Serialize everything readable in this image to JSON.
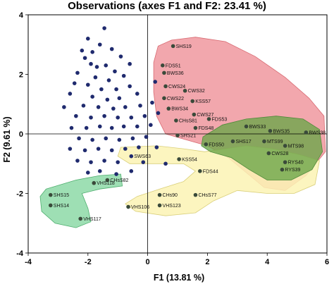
{
  "chart_data": {
    "type": "scatter",
    "title": "Observations (axes F1 and F2: 23.41 %)",
    "xlabel": "F1 (13.81 %)",
    "ylabel": "F2 (9.61 %)",
    "xlim": [
      -4,
      6
    ],
    "ylim": [
      -4,
      4
    ],
    "x_ticks": [
      -4,
      -2,
      0,
      2,
      4,
      6
    ],
    "y_ticks": [
      -4,
      -2,
      0,
      2,
      4
    ],
    "grid": false,
    "zero_lines": true,
    "colors": {
      "point": "#1f2a6e",
      "point_in_region": "#3a4a3a",
      "red_region": "#ee8a91",
      "green_region": "#7ed49b",
      "yellow_region": "#fbf3b4",
      "green_overlap": "#6da64a"
    },
    "labeled_points": [
      {
        "label": "SHS19",
        "x": 0.85,
        "y": 2.95
      },
      {
        "label": "FDS51",
        "x": 0.5,
        "y": 2.3
      },
      {
        "label": "BWS36",
        "x": 0.55,
        "y": 2.05
      },
      {
        "label": "CWS24",
        "x": 0.6,
        "y": 1.6
      },
      {
        "label": "CWS32",
        "x": 1.25,
        "y": 1.45
      },
      {
        "label": "CWS22",
        "x": 0.55,
        "y": 1.2
      },
      {
        "label": "KSS57",
        "x": 1.5,
        "y": 1.1
      },
      {
        "label": "BWS34",
        "x": 0.7,
        "y": 0.85
      },
      {
        "label": "CWS27",
        "x": 1.55,
        "y": 0.65
      },
      {
        "label": "CHsS81",
        "x": 0.95,
        "y": 0.45
      },
      {
        "label": "FDS53",
        "x": 2.05,
        "y": 0.5
      },
      {
        "label": "FDS48",
        "x": 1.6,
        "y": 0.2
      },
      {
        "label": "SHS21",
        "x": 1.0,
        "y": -0.05
      },
      {
        "label": "FDS50",
        "x": 1.95,
        "y": -0.35
      },
      {
        "label": "SHS17",
        "x": 2.85,
        "y": -0.25
      },
      {
        "label": "BWS33",
        "x": 3.3,
        "y": 0.25
      },
      {
        "label": "BWS35",
        "x": 4.1,
        "y": 0.1
      },
      {
        "label": "BWS38",
        "x": 5.3,
        "y": 0.05
      },
      {
        "label": "MTS99",
        "x": 3.9,
        "y": -0.25
      },
      {
        "label": "MTS98",
        "x": 4.6,
        "y": -0.4
      },
      {
        "label": "CWS28",
        "x": 4.05,
        "y": -0.65
      },
      {
        "label": "RYS40",
        "x": 4.6,
        "y": -0.95
      },
      {
        "label": "RYS39",
        "x": 4.5,
        "y": -1.2
      },
      {
        "label": "SWS63",
        "x": -0.55,
        "y": -0.75
      },
      {
        "label": "KSS54",
        "x": 1.05,
        "y": -0.85
      },
      {
        "label": "FDS44",
        "x": 1.75,
        "y": -1.25
      },
      {
        "label": "CHsS82",
        "x": -1.35,
        "y": -1.55
      },
      {
        "label": "VHS118",
        "x": -1.8,
        "y": -1.65
      },
      {
        "label": "CHs90",
        "x": 0.4,
        "y": -2.05
      },
      {
        "label": "CHsS77",
        "x": 1.6,
        "y": -2.05
      },
      {
        "label": "VHS106",
        "x": -0.65,
        "y": -2.45
      },
      {
        "label": "VHS123",
        "x": 0.4,
        "y": -2.4
      },
      {
        "label": "SHS15",
        "x": -3.25,
        "y": -2.05
      },
      {
        "label": "SHS14",
        "x": -3.25,
        "y": -2.4
      },
      {
        "label": "VHS117",
        "x": -2.25,
        "y": -2.85
      }
    ],
    "unlabeled_points": [
      {
        "x": -2.0,
        "y": 3.2
      },
      {
        "x": -1.45,
        "y": 3.55
      },
      {
        "x": -2.2,
        "y": 2.8
      },
      {
        "x": -1.85,
        "y": 2.75
      },
      {
        "x": -2.1,
        "y": 2.55
      },
      {
        "x": -1.2,
        "y": 2.85
      },
      {
        "x": -1.9,
        "y": 2.35
      },
      {
        "x": -1.7,
        "y": 2.25
      },
      {
        "x": -1.4,
        "y": 2.3
      },
      {
        "x": -1.1,
        "y": 2.1
      },
      {
        "x": -2.35,
        "y": 2.05
      },
      {
        "x": -1.75,
        "y": 1.9
      },
      {
        "x": -1.3,
        "y": 1.8
      },
      {
        "x": -0.8,
        "y": 1.95
      },
      {
        "x": -2.0,
        "y": 1.65
      },
      {
        "x": -1.55,
        "y": 1.5
      },
      {
        "x": -1.05,
        "y": 1.5
      },
      {
        "x": -0.6,
        "y": 1.6
      },
      {
        "x": -2.6,
        "y": 1.35
      },
      {
        "x": -1.85,
        "y": 1.25
      },
      {
        "x": -1.35,
        "y": 1.15
      },
      {
        "x": -0.95,
        "y": 1.2
      },
      {
        "x": -0.35,
        "y": 1.35
      },
      {
        "x": -2.15,
        "y": 0.95
      },
      {
        "x": -1.65,
        "y": 0.9
      },
      {
        "x": -1.15,
        "y": 0.85
      },
      {
        "x": -0.75,
        "y": 0.9
      },
      {
        "x": -0.25,
        "y": 0.95
      },
      {
        "x": -2.4,
        "y": 0.6
      },
      {
        "x": -1.9,
        "y": 0.55
      },
      {
        "x": -1.45,
        "y": 0.6
      },
      {
        "x": -1.0,
        "y": 0.55
      },
      {
        "x": -0.55,
        "y": 0.55
      },
      {
        "x": -0.1,
        "y": 0.6
      },
      {
        "x": -2.55,
        "y": 0.2
      },
      {
        "x": -2.05,
        "y": 0.2
      },
      {
        "x": -1.6,
        "y": 0.25
      },
      {
        "x": -1.2,
        "y": 0.2
      },
      {
        "x": -0.8,
        "y": 0.25
      },
      {
        "x": -0.35,
        "y": 0.25
      },
      {
        "x": 0.1,
        "y": 0.3
      },
      {
        "x": -2.3,
        "y": -0.15
      },
      {
        "x": -1.85,
        "y": -0.2
      },
      {
        "x": -1.4,
        "y": -0.15
      },
      {
        "x": -0.95,
        "y": -0.2
      },
      {
        "x": -0.5,
        "y": -0.15
      },
      {
        "x": -0.05,
        "y": -0.1
      },
      {
        "x": -2.6,
        "y": -0.5
      },
      {
        "x": -2.1,
        "y": -0.55
      },
      {
        "x": -1.65,
        "y": -0.5
      },
      {
        "x": -1.2,
        "y": -0.55
      },
      {
        "x": -0.75,
        "y": -0.5
      },
      {
        "x": -0.3,
        "y": -0.45
      },
      {
        "x": -2.35,
        "y": -0.9
      },
      {
        "x": -1.9,
        "y": -0.95
      },
      {
        "x": -1.45,
        "y": -0.9
      },
      {
        "x": -1.0,
        "y": -0.95
      },
      {
        "x": -0.15,
        "y": -0.95
      },
      {
        "x": -2.0,
        "y": -1.3
      },
      {
        "x": -1.6,
        "y": -1.25
      },
      {
        "x": -1.05,
        "y": -1.35
      },
      {
        "x": -0.55,
        "y": -1.25
      },
      {
        "x": 0.25,
        "y": 1.75
      },
      {
        "x": 0.15,
        "y": 1.05
      },
      {
        "x": 0.35,
        "y": 0.7
      },
      {
        "x": -0.6,
        "y": 2.35
      },
      {
        "x": -0.9,
        "y": 2.6
      },
      {
        "x": -1.6,
        "y": 3.0
      },
      {
        "x": -2.45,
        "y": 1.7
      },
      {
        "x": -2.8,
        "y": 0.9
      },
      {
        "x": 0.3,
        "y": -0.45
      },
      {
        "x": 0.6,
        "y": -1.0
      }
    ]
  }
}
